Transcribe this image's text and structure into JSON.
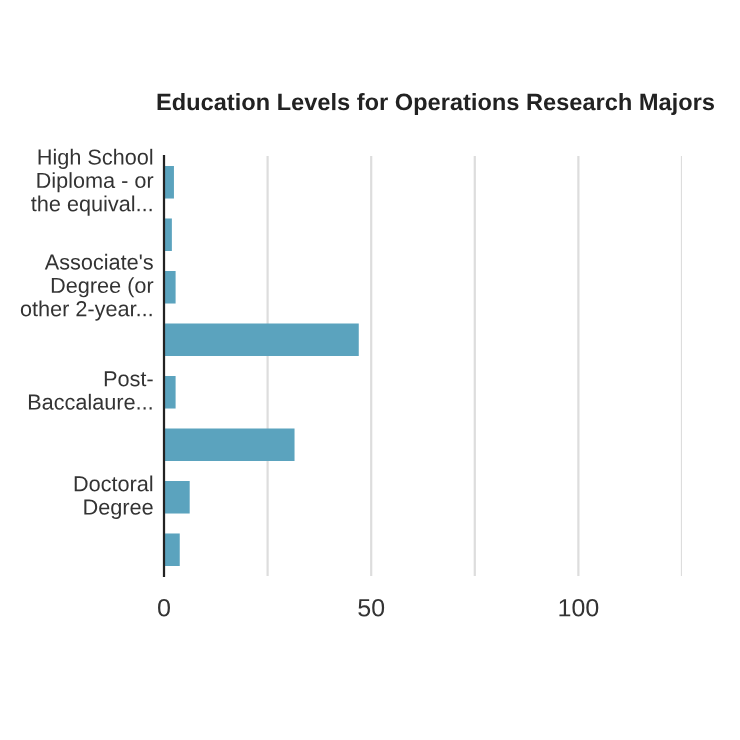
{
  "chart_data": {
    "type": "bar",
    "orientation": "horizontal",
    "title": "Education Levels for Operations Research Majors",
    "categories": [
      "High School Diploma - or the equival...",
      null,
      "Associate's Degree (or other 2-year...",
      null,
      "Post-Baccalaure...",
      null,
      "Doctoral Degree",
      null
    ],
    "values": [
      2.4,
      1.9,
      2.8,
      47,
      2.8,
      31.5,
      6.2,
      3.8
    ],
    "color": "#5ba3be",
    "xlim": [
      0,
      125
    ],
    "xticks": [
      0,
      {
        "value": 25,
        "label": null
      },
      50,
      {
        "value": 75,
        "label": null
      },
      100,
      {
        "value": 125,
        "label": null
      }
    ],
    "grid": "x"
  }
}
